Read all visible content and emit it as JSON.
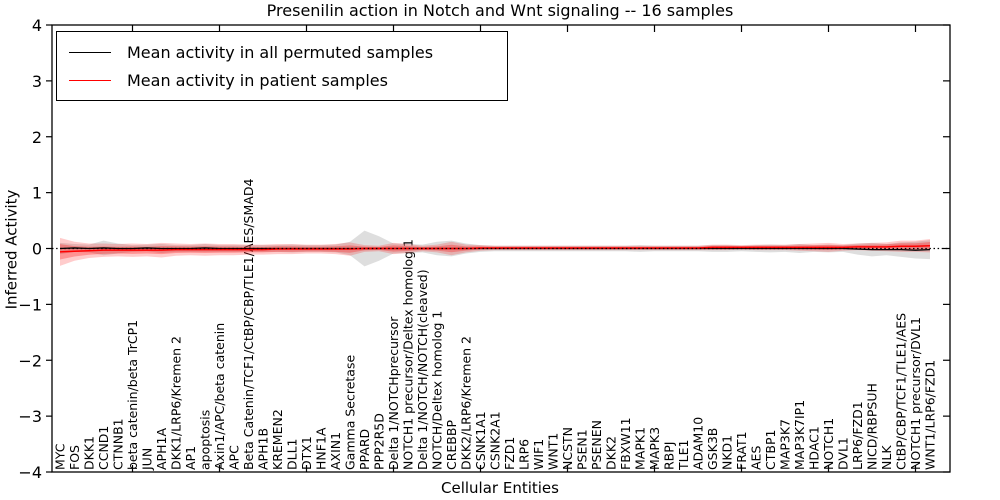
{
  "figure": {
    "title": "Presenilin action in Notch and Wnt signaling -- 16 samples",
    "xlabel": "Cellular Entities",
    "ylabel": "Inferred Activity",
    "legend": [
      {
        "label": "Mean activity in all permuted samples",
        "color": "#000000"
      },
      {
        "label": "Mean activity in patient samples",
        "color": "#ff0000"
      }
    ]
  },
  "chart_data": {
    "type": "line",
    "title": "Presenilin action in Notch and Wnt signaling -- 16 samples",
    "xlabel": "Cellular Entities",
    "ylabel": "Inferred Activity",
    "ylim": [
      -4,
      4
    ],
    "yticks": [
      -4,
      -3,
      -2,
      -1,
      0,
      1,
      2,
      3,
      4
    ],
    "grid": false,
    "legend_position": "upper left",
    "reference_line": {
      "y": 0,
      "style": "dotted",
      "color": "#000000"
    },
    "band_meaning": "shaded region = spread (± std) around each mean line",
    "colors": {
      "permuted_line": "#000000",
      "patient_line": "#ff0000",
      "permuted_band": "#999999",
      "patient_band": "#ff0000"
    },
    "categories": [
      "MYC",
      "FOS",
      "DKK1",
      "CCND1",
      "CTNNB1",
      "beta catenin/beta TrCP1",
      "JUN",
      "APH1A",
      "DKK1/LRP6/Kremen 2",
      "AP1",
      "apoptosis",
      "Axin1/APC/beta catenin",
      "APC",
      "Beta Catenin/TCF1/CtBP/CBP/TLE1/AES/SMAD4",
      "APH1B",
      "KREMEN2",
      "DLL1",
      "DTX1",
      "HNF1A",
      "AXIN1",
      "Gamma Secretase",
      "PPARD",
      "PPP2R5D",
      "Delta 1/NOTCHprecursor",
      "NOTCH1 precursor/Deltex homolog 1",
      "Delta 1/NOTCH/NOTCH(cleaved)",
      "NOTCH/Deltex homolog 1",
      "CREBBP",
      "DKK2/LRP6/Kremen 2",
      "CSNK1A1",
      "CSNK2A1",
      "FZD1",
      "LRP6",
      "WIF1",
      "WNT1",
      "NCSTN",
      "PSEN1",
      "PSENEN",
      "DKK2",
      "FBXW11",
      "MAPK1",
      "MAPK3",
      "RBPJ",
      "TLE1",
      "ADAM10",
      "GSK3B",
      "NKD1",
      "FRAT1",
      "AES",
      "CTBP1",
      "MAP3K7",
      "MAP3K7IP1",
      "HDAC1",
      "NOTCH1",
      "DVL1",
      "LRP6/FZD1",
      "NICD/RBPSUH",
      "NLK",
      "CtBP/CBP/TCF1/TLE1/AES",
      "NOTCH1 precursor/DVL1",
      "WNT1/LRP6/FZD1"
    ],
    "series": [
      {
        "name": "Mean activity in all permuted samples",
        "color": "#000000",
        "values": [
          0,
          0.01,
          0,
          0.01,
          0,
          0,
          0.01,
          0,
          0,
          0,
          0.01,
          0,
          0,
          0,
          0,
          0,
          0,
          0,
          0,
          0,
          0,
          0,
          0,
          0,
          0,
          0,
          0,
          0,
          0,
          0,
          0,
          0,
          0,
          0,
          0,
          0,
          0,
          0,
          0,
          0,
          0,
          0,
          0,
          0,
          0,
          0,
          0,
          0,
          0,
          0,
          0,
          0,
          0,
          0,
          0,
          -0.01,
          -0.02,
          -0.02,
          -0.02,
          -0.03,
          -0.02
        ],
        "band_halfwidth": [
          0.1,
          0.07,
          0.07,
          0.13,
          0.09,
          0.06,
          0.06,
          0.08,
          0.06,
          0.06,
          0.07,
          0.06,
          0.06,
          0.06,
          0.06,
          0.06,
          0.07,
          0.06,
          0.06,
          0.07,
          0.12,
          0.32,
          0.22,
          0.09,
          0.08,
          0.07,
          0.12,
          0.14,
          0.09,
          0.06,
          0.05,
          0.05,
          0.05,
          0.05,
          0.05,
          0.05,
          0.05,
          0.05,
          0.05,
          0.05,
          0.06,
          0.05,
          0.05,
          0.05,
          0.05,
          0.06,
          0.06,
          0.05,
          0.06,
          0.07,
          0.06,
          0.08,
          0.06,
          0.07,
          0.06,
          0.1,
          0.12,
          0.1,
          0.13,
          0.15,
          0.17
        ]
      },
      {
        "name": "Mean activity in patient samples",
        "color": "#ff0000",
        "values": [
          -0.06,
          -0.05,
          -0.04,
          -0.03,
          -0.03,
          -0.03,
          -0.03,
          -0.03,
          -0.02,
          -0.02,
          -0.02,
          -0.02,
          -0.02,
          -0.02,
          -0.02,
          -0.01,
          -0.01,
          -0.01,
          -0.01,
          -0.01,
          -0.01,
          0,
          0,
          0,
          0,
          0,
          0,
          0,
          0,
          0.01,
          0.01,
          0.01,
          0.01,
          0.01,
          0.01,
          0.01,
          0.01,
          0.01,
          0.01,
          0.01,
          0.01,
          0.01,
          0.01,
          0.01,
          0.01,
          0.02,
          0.02,
          0.02,
          0.02,
          0.02,
          0.02,
          0.02,
          0.02,
          0.02,
          0.02,
          0.03,
          0.03,
          0.03,
          0.04,
          0.04,
          0.05
        ],
        "band_halfwidth": [
          0.25,
          0.17,
          0.13,
          0.12,
          0.11,
          0.12,
          0.11,
          0.13,
          0.11,
          0.1,
          0.11,
          0.1,
          0.1,
          0.09,
          0.09,
          0.09,
          0.09,
          0.08,
          0.08,
          0.09,
          0.12,
          0.06,
          0.05,
          0.1,
          0.08,
          0.05,
          0.07,
          0.12,
          0.07,
          0.05,
          0.04,
          0.04,
          0.04,
          0.04,
          0.04,
          0.04,
          0.04,
          0.04,
          0.04,
          0.04,
          0.04,
          0.04,
          0.04,
          0.04,
          0.04,
          0.05,
          0.05,
          0.04,
          0.05,
          0.05,
          0.05,
          0.06,
          0.07,
          0.08,
          0.06,
          0.06,
          0.07,
          0.08,
          0.1,
          0.1,
          0.12
        ]
      }
    ]
  }
}
